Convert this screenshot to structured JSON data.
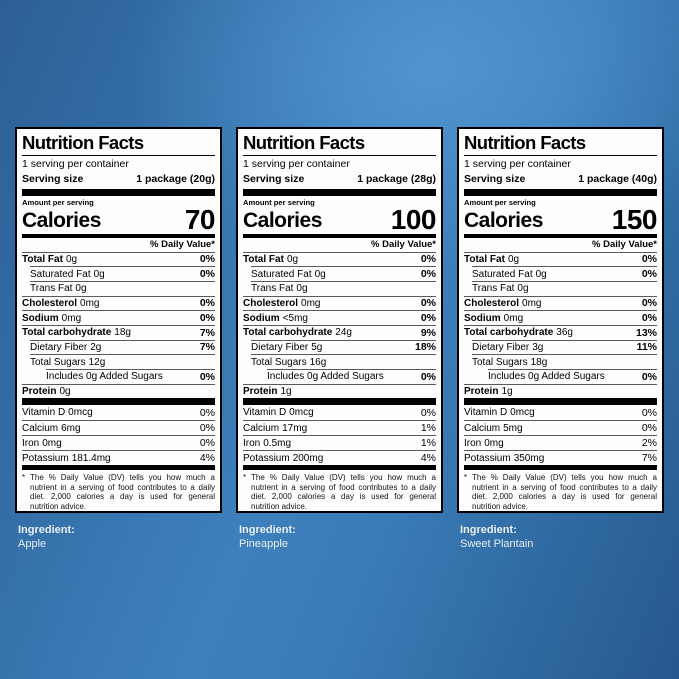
{
  "page": {
    "background_base": "#3d80bc",
    "background_light": "#4f94d1",
    "background_dark": "#26588e",
    "label_text_color": "#000000",
    "ingredient_text_color": "#ebf2f9"
  },
  "labels": [
    {
      "title": "Nutrition Facts",
      "servings_per_container": "1 serving per container",
      "serving_size_label": "Serving size",
      "serving_size_value": "1 package (20g)",
      "amount_per_serving_label": "Amount per serving",
      "calories_label": "Calories",
      "calories_value": "70",
      "daily_value_header": "% Daily Value*",
      "rows": [
        {
          "label": "Total Fat",
          "amount": "0g",
          "dv": "0%",
          "bold": true,
          "indent": 0
        },
        {
          "label": "Saturated Fat",
          "amount": "0g",
          "dv": "0%",
          "bold": false,
          "indent": 1
        },
        {
          "label": "Trans Fat",
          "amount": "0g",
          "dv": "",
          "bold": false,
          "indent": 1
        },
        {
          "label": "Cholesterol",
          "amount": "0mg",
          "dv": "0%",
          "bold": true,
          "indent": 0
        },
        {
          "label": "Sodium",
          "amount": "0mg",
          "dv": "0%",
          "bold": true,
          "indent": 0
        },
        {
          "label": "Total carbohydrate",
          "amount": "18g",
          "dv": "7%",
          "bold": true,
          "indent": 0
        },
        {
          "label": "Dietary Fiber",
          "amount": "2g",
          "dv": "7%",
          "bold": false,
          "indent": 1
        },
        {
          "label": "Total Sugars",
          "amount": "12g",
          "dv": "",
          "bold": false,
          "indent": 1
        },
        {
          "label": "Includes 0g Added Sugars",
          "amount": "",
          "dv": "0%",
          "bold": false,
          "indent": 2
        },
        {
          "label": "Protein",
          "amount": "0g",
          "dv": "",
          "bold": true,
          "indent": 0
        }
      ],
      "vitamins": [
        {
          "label": "Vitamin D",
          "amount": "0mcg",
          "dv": "0%"
        },
        {
          "label": "Calcium",
          "amount": "6mg",
          "dv": "0%"
        },
        {
          "label": "Iron",
          "amount": "0mg",
          "dv": "0%"
        },
        {
          "label": "Potassium",
          "amount": "181.4mg",
          "dv": "4%"
        }
      ],
      "footnote_marker": "*",
      "footnote": "The % Daily Value (DV) tells you how much a nutrient in a serving of food contributes to a daily diet. 2,000 calories a day is used for general nutrition advice.",
      "ingredient_label": "Ingredient:",
      "ingredient_value": "Apple"
    },
    {
      "title": "Nutrition Facts",
      "servings_per_container": "1 serving per container",
      "serving_size_label": "Serving size",
      "serving_size_value": "1 package (28g)",
      "amount_per_serving_label": "Amount per serving",
      "calories_label": "Calories",
      "calories_value": "100",
      "daily_value_header": "% Daily Value*",
      "rows": [
        {
          "label": "Total Fat",
          "amount": "0g",
          "dv": "0%",
          "bold": true,
          "indent": 0
        },
        {
          "label": "Saturated Fat",
          "amount": "0g",
          "dv": "0%",
          "bold": false,
          "indent": 1
        },
        {
          "label": "Trans Fat",
          "amount": "0g",
          "dv": "",
          "bold": false,
          "indent": 1
        },
        {
          "label": "Cholesterol",
          "amount": "0mg",
          "dv": "0%",
          "bold": true,
          "indent": 0
        },
        {
          "label": "Sodium",
          "amount": "<5mg",
          "dv": "0%",
          "bold": true,
          "indent": 0
        },
        {
          "label": "Total carbohydrate",
          "amount": "24g",
          "dv": "9%",
          "bold": true,
          "indent": 0
        },
        {
          "label": "Dietary Fiber",
          "amount": "5g",
          "dv": "18%",
          "bold": false,
          "indent": 1
        },
        {
          "label": "Total Sugars",
          "amount": "16g",
          "dv": "",
          "bold": false,
          "indent": 1
        },
        {
          "label": "Includes 0g Added Sugars",
          "amount": "",
          "dv": "0%",
          "bold": false,
          "indent": 2
        },
        {
          "label": "Protein",
          "amount": "1g",
          "dv": "",
          "bold": true,
          "indent": 0
        }
      ],
      "vitamins": [
        {
          "label": "Vitamin D",
          "amount": "0mcg",
          "dv": "0%"
        },
        {
          "label": "Calcium",
          "amount": "17mg",
          "dv": "1%"
        },
        {
          "label": "Iron",
          "amount": "0.5mg",
          "dv": "1%"
        },
        {
          "label": "Potassium",
          "amount": "200mg",
          "dv": "4%"
        }
      ],
      "footnote_marker": "*",
      "footnote": "The % Daily Value (DV) tells you how much a nutrient in a serving of food contributes to a daily diet. 2,000 calories a day is used for general nutrition advice.",
      "ingredient_label": "Ingredient:",
      "ingredient_value": "Pineapple"
    },
    {
      "title": "Nutrition Facts",
      "servings_per_container": "1 serving per container",
      "serving_size_label": "Serving size",
      "serving_size_value": "1 package (40g)",
      "amount_per_serving_label": "Amount per serving",
      "calories_label": "Calories",
      "calories_value": "150",
      "daily_value_header": "% Daily Value*",
      "rows": [
        {
          "label": "Total Fat",
          "amount": "0g",
          "dv": "0%",
          "bold": true,
          "indent": 0
        },
        {
          "label": "Saturated Fat",
          "amount": "0g",
          "dv": "0%",
          "bold": false,
          "indent": 1
        },
        {
          "label": "Trans Fat",
          "amount": "0g",
          "dv": "",
          "bold": false,
          "indent": 1
        },
        {
          "label": "Cholesterol",
          "amount": "0mg",
          "dv": "0%",
          "bold": true,
          "indent": 0
        },
        {
          "label": "Sodium",
          "amount": "0mg",
          "dv": "0%",
          "bold": true,
          "indent": 0
        },
        {
          "label": "Total carbohydrate",
          "amount": "36g",
          "dv": "13%",
          "bold": true,
          "indent": 0
        },
        {
          "label": "Dietary Fiber",
          "amount": "3g",
          "dv": "11%",
          "bold": false,
          "indent": 1
        },
        {
          "label": "Total Sugars",
          "amount": "18g",
          "dv": "",
          "bold": false,
          "indent": 1
        },
        {
          "label": "Includes 0g Added Sugars",
          "amount": "",
          "dv": "0%",
          "bold": false,
          "indent": 2
        },
        {
          "label": "Protein",
          "amount": "1g",
          "dv": "",
          "bold": true,
          "indent": 0
        }
      ],
      "vitamins": [
        {
          "label": "Vitamin D",
          "amount": "0mcg",
          "dv": "0%"
        },
        {
          "label": "Calcium",
          "amount": "5mg",
          "dv": "0%"
        },
        {
          "label": "Iron",
          "amount": "0mg",
          "dv": "2%"
        },
        {
          "label": "Potassium",
          "amount": "350mg",
          "dv": "7%"
        }
      ],
      "footnote_marker": "*",
      "footnote": "The % Daily Value (DV) tells you how much a nutrient in a serving of food contributes to a daily diet. 2,000 calories a day is used for general nutrition advice.",
      "ingredient_label": "Ingredient:",
      "ingredient_value": "Sweet Plantain"
    }
  ]
}
